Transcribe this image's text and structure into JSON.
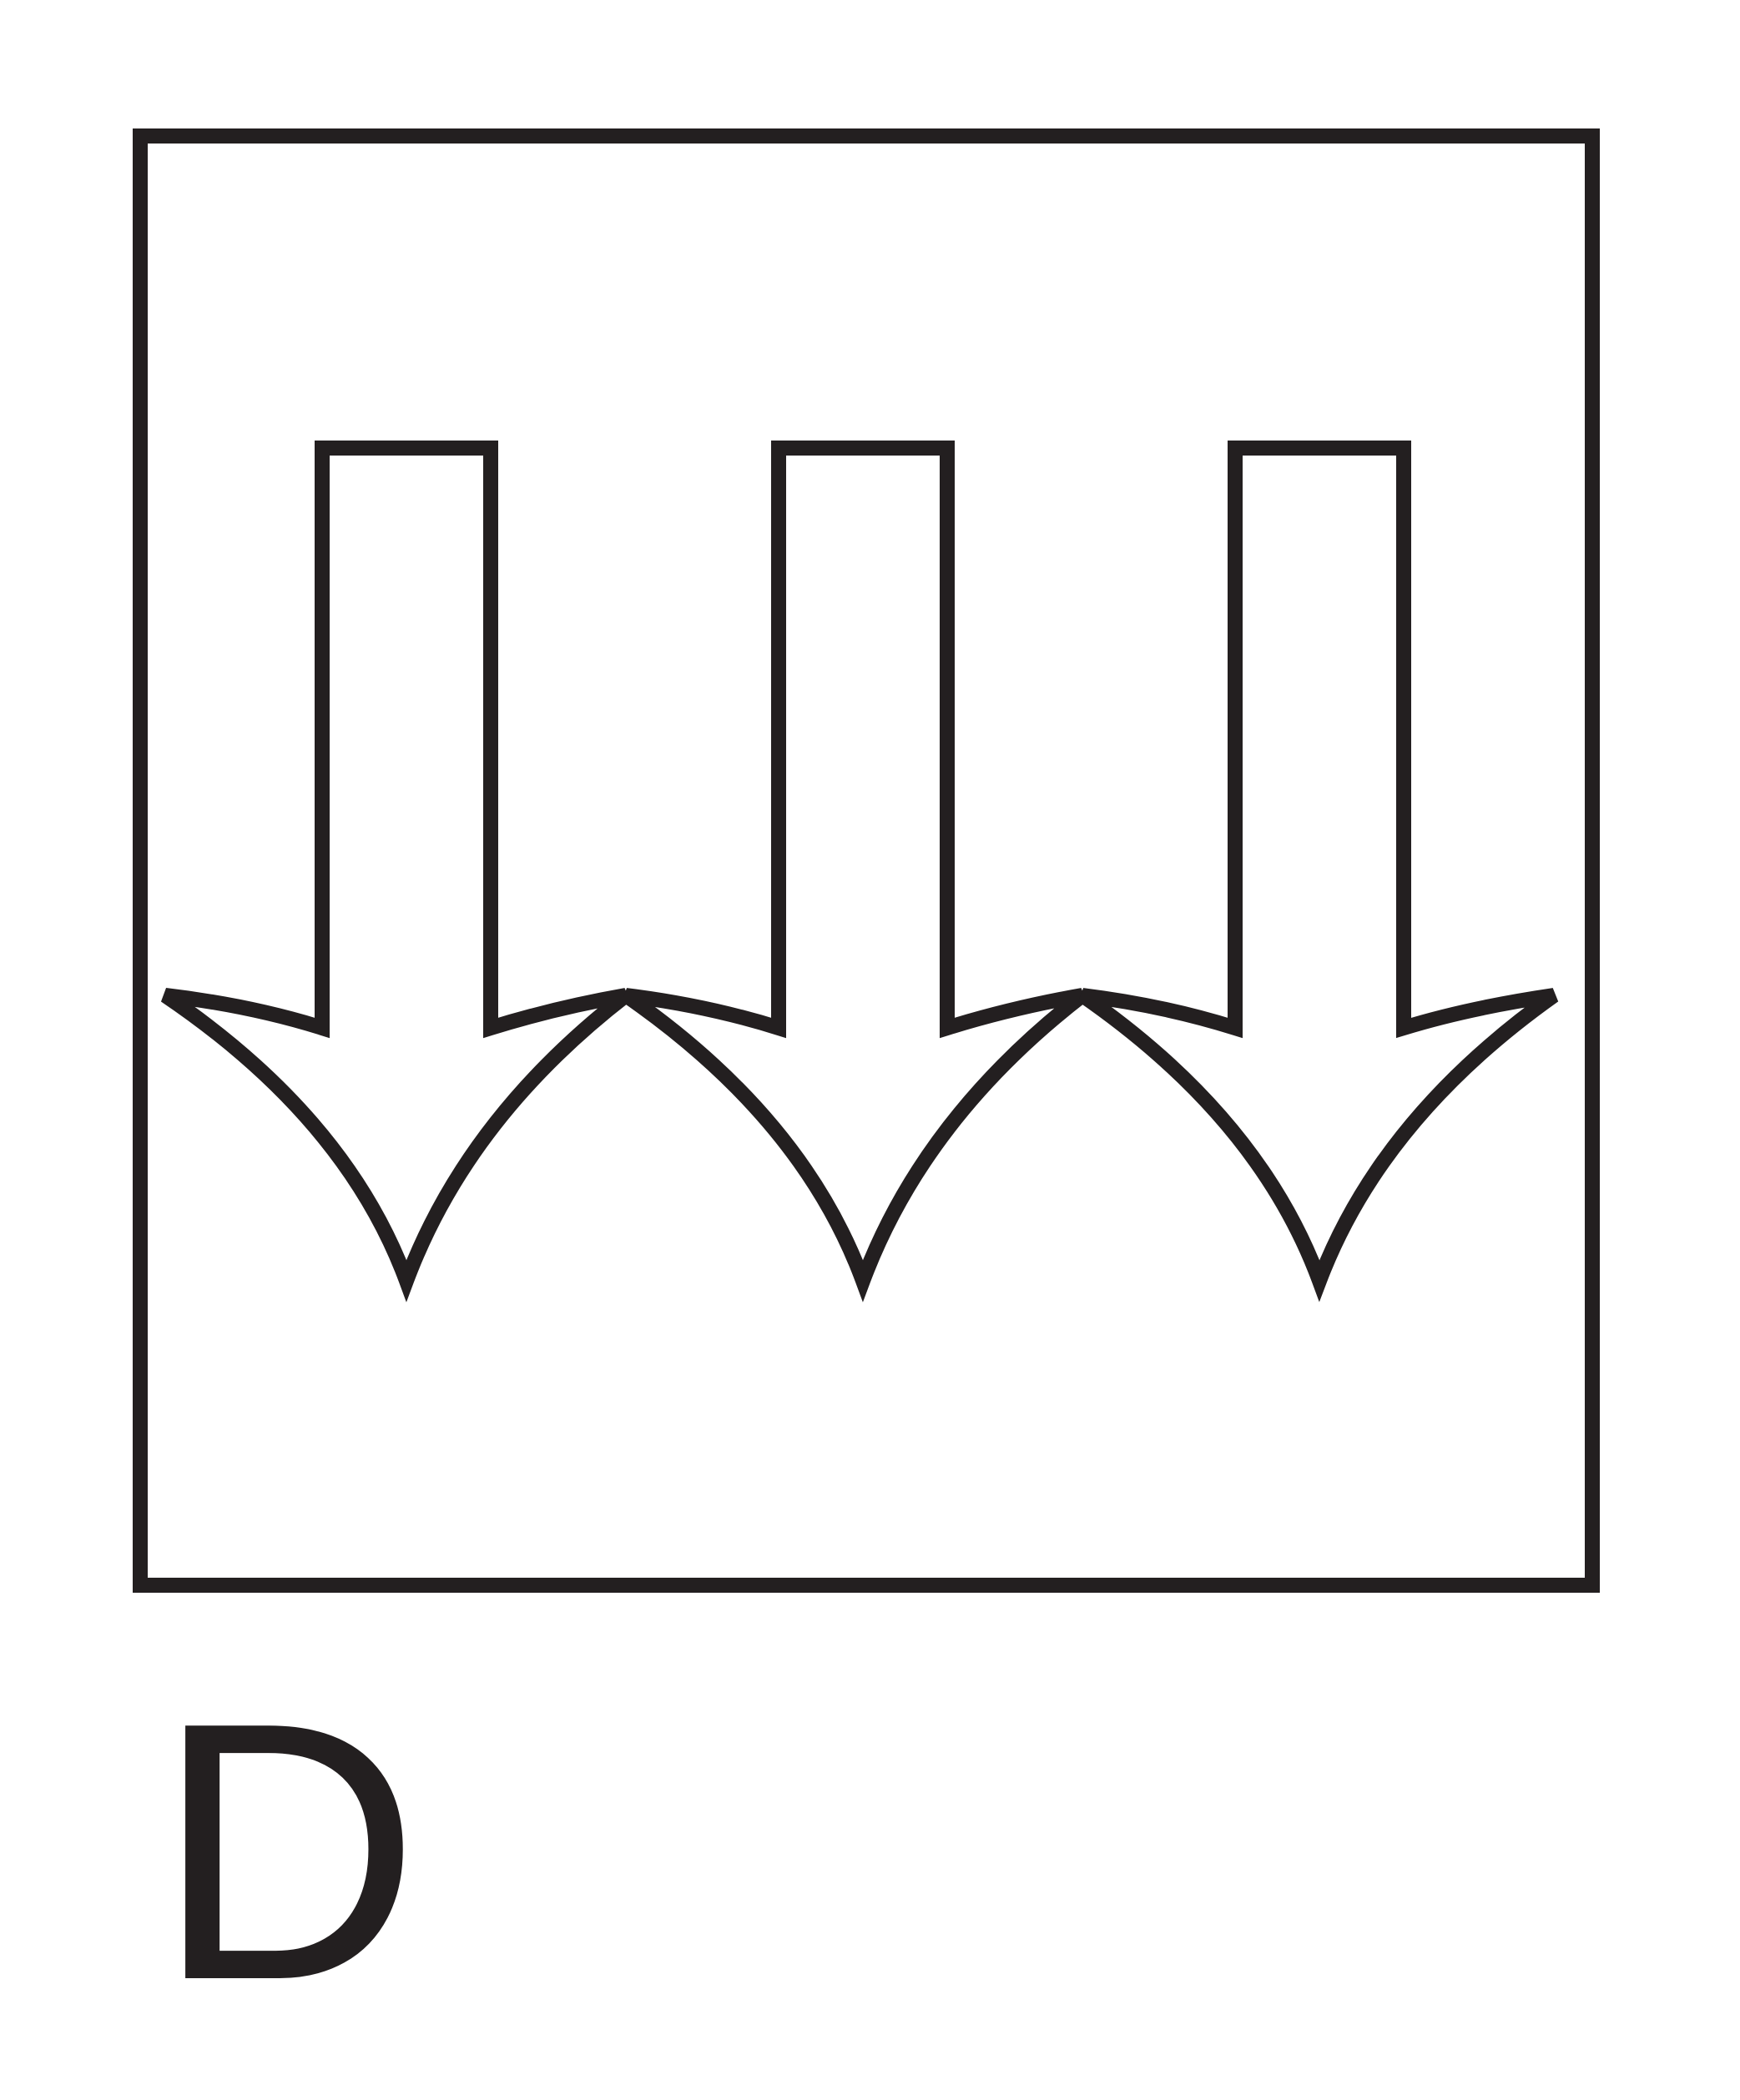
{
  "diagram": {
    "label": "D",
    "arrow_count": 3,
    "arrow_direction": "down",
    "stroke_color": "#231f20",
    "fill_color": "#ffffff",
    "frame_color": "#231f20"
  }
}
